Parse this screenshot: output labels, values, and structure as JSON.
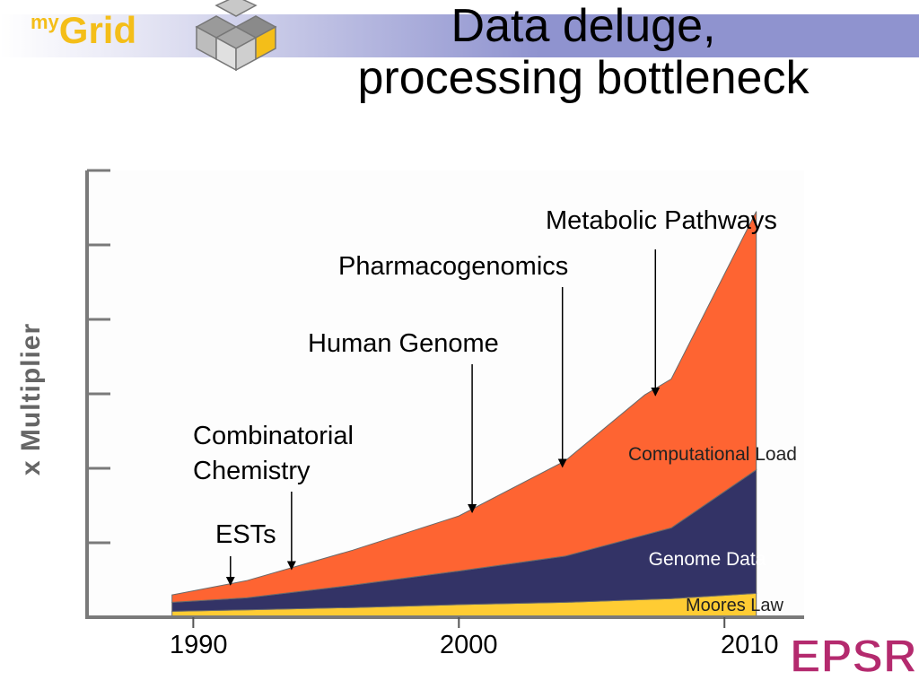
{
  "header": {
    "logo_sup": "my",
    "logo_main": "Grid",
    "title_line1": "Data deluge,",
    "title_line2": "processing bottleneck",
    "footer_logo": "EPSRC"
  },
  "colors": {
    "computational_load": "#fe6432",
    "genome_data": "#333366",
    "moores_law": "#ffcc33",
    "logo_yellow": "#f4be19",
    "band": "#8f93cf",
    "epsrc": "#b42a6e"
  },
  "chart_data": {
    "type": "area",
    "ylabel": "x Multiplier",
    "xlabel": "",
    "x_ticks": [
      "1990",
      "2000",
      "2010"
    ],
    "x_tick_values": [
      1990,
      2000,
      2010
    ],
    "xlim": [
      1986,
      2013
    ],
    "ylim": [
      0,
      6
    ],
    "stacked": true,
    "series": [
      {
        "name": "Moores Law",
        "x": [
          1989.2,
          1992,
          1996,
          2000,
          2004,
          2008,
          2011.2
        ],
        "values": [
          0.08,
          0.1,
          0.13,
          0.17,
          0.2,
          0.25,
          0.32
        ]
      },
      {
        "name": "Genome Data",
        "x": [
          1989.2,
          1992,
          1996,
          2000,
          2004,
          2008,
          2011.2
        ],
        "values": [
          0.12,
          0.16,
          0.3,
          0.45,
          0.62,
          0.95,
          1.66
        ]
      },
      {
        "name": "Computational Load",
        "x": [
          1989.2,
          1992,
          1996,
          2000,
          2004,
          2007,
          2008,
          2011.2
        ],
        "values": [
          0.1,
          0.23,
          0.47,
          0.74,
          1.28,
          1.88,
          2.0,
          3.47
        ]
      }
    ],
    "annotations": [
      {
        "text": "ESTs",
        "x": 1991.4
      },
      {
        "text": "Combinatorial\nChemistry",
        "x": 1993.7
      },
      {
        "text": "Human Genome",
        "x": 2000.5
      },
      {
        "text": "Pharmacogenomics",
        "x": 2003.9
      },
      {
        "text": "Metabolic Pathways",
        "x": 2007.4
      }
    ],
    "grid": false,
    "legend": "none"
  }
}
